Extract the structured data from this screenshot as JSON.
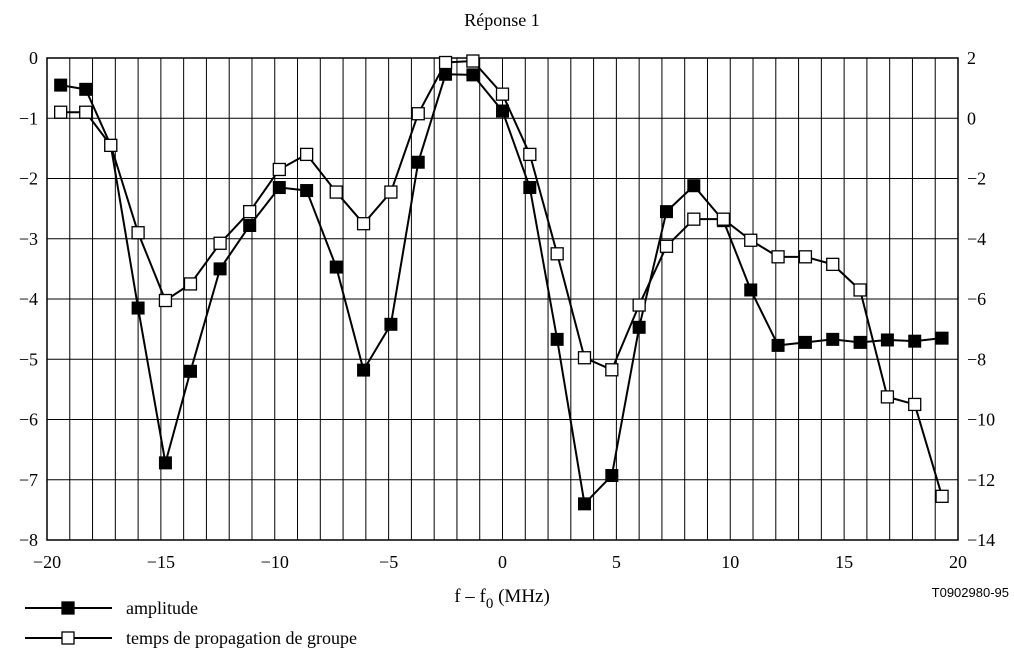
{
  "chart_data": {
    "type": "line",
    "title": "Réponse 1",
    "xlabel_main": "f – f",
    "xlabel_sub": "0",
    "xlabel_unit": " (MHz)",
    "figure_code": "T0902980-95",
    "xlim": [
      -20,
      20
    ],
    "xticks": [
      -20,
      -15,
      -10,
      -5,
      0,
      5,
      10,
      15,
      20
    ],
    "x_tick_labels": [
      "−20",
      "−15",
      "−10",
      "−5",
      "0",
      "5",
      "10",
      "15",
      "20"
    ],
    "ylim_left": [
      -8,
      0
    ],
    "yticks_left": [
      0,
      -1,
      -2,
      -3,
      -4,
      -5,
      -6,
      -7,
      -8
    ],
    "y_left_tick_labels": [
      "0",
      "−1",
      "−2",
      "−3",
      "−4",
      "−5",
      "−6",
      "−7",
      "−8"
    ],
    "ylim_right": [
      -14,
      2
    ],
    "yticks_right": [
      2,
      0,
      -2,
      -4,
      -6,
      -8,
      -10,
      -12,
      -14
    ],
    "y_right_tick_labels": [
      "2",
      "0",
      "−2",
      "−4",
      "−6",
      "−8",
      "−10",
      "−12",
      "−14"
    ],
    "grid": true,
    "legend_position": "bottom-left",
    "series": [
      {
        "name": "amplitude",
        "axis": "left",
        "marker": "filled-square",
        "color": "#000000",
        "x": [
          -19.4,
          -18.3,
          -17.2,
          -16.0,
          -14.8,
          -13.7,
          -12.4,
          -11.1,
          -9.8,
          -8.6,
          -7.3,
          -6.1,
          -4.9,
          -3.7,
          -2.5,
          -1.3,
          0.0,
          1.2,
          2.4,
          3.6,
          4.8,
          6.0,
          7.2,
          8.4,
          9.7,
          10.9,
          12.1,
          13.3,
          14.5,
          15.7,
          16.9,
          18.1,
          19.3
        ],
        "y": [
          -0.45,
          -0.52,
          -1.45,
          -4.15,
          -6.72,
          -5.2,
          -3.5,
          -2.78,
          -2.15,
          -2.2,
          -3.47,
          -5.18,
          -4.42,
          -1.73,
          -0.27,
          -0.28,
          -0.88,
          -2.15,
          -4.67,
          -7.4,
          -6.93,
          -4.47,
          -2.55,
          -2.12,
          -2.7,
          -3.85,
          -4.77,
          -4.72,
          -4.67,
          -4.72,
          -4.68,
          -4.7,
          -4.65
        ]
      },
      {
        "name": "temps de propagation de groupe",
        "axis": "right",
        "marker": "open-square",
        "color": "#000000",
        "x": [
          -19.4,
          -18.3,
          -17.2,
          -16.0,
          -14.8,
          -13.7,
          -12.4,
          -11.1,
          -9.8,
          -8.6,
          -7.3,
          -6.1,
          -4.9,
          -3.7,
          -2.5,
          -1.3,
          0.0,
          1.2,
          2.4,
          3.6,
          4.8,
          6.0,
          7.2,
          8.4,
          9.7,
          10.9,
          12.1,
          13.3,
          14.5,
          15.7,
          16.9,
          18.1,
          19.3
        ],
        "y": [
          0.2,
          0.2,
          -0.9,
          -3.8,
          -6.05,
          -5.5,
          -4.15,
          -3.1,
          -1.7,
          -1.2,
          -2.45,
          -3.5,
          -2.45,
          0.15,
          1.85,
          1.9,
          0.8,
          -1.2,
          -4.5,
          -7.95,
          -8.35,
          -6.2,
          -4.25,
          -3.35,
          -3.35,
          -4.05,
          -4.6,
          -4.6,
          -4.85,
          -5.7,
          -9.25,
          -9.5,
          -12.55
        ]
      }
    ]
  }
}
